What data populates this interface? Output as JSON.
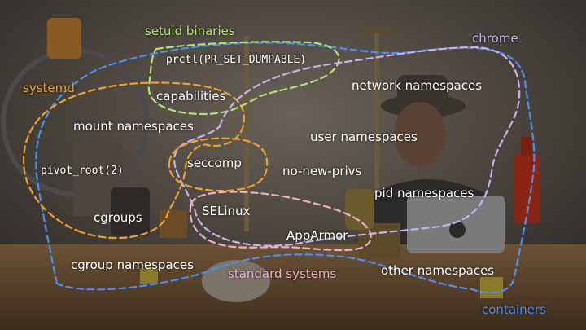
{
  "groups": {
    "setuid": {
      "label": "setuid binaries",
      "color": "#b8e07a"
    },
    "systemd": {
      "label": "systemd",
      "color": "#f0a030"
    },
    "chrome": {
      "label": "chrome",
      "color": "#c7b2ee"
    },
    "standard": {
      "label": "standard systems",
      "color": "#eab0c8"
    },
    "containers": {
      "label": "containers",
      "color": "#4d8ef0"
    }
  },
  "features": {
    "prctl": "prctl(PR_SET_DUMPABLE)",
    "capabilities": "capabilities",
    "mount_ns": "mount namespaces",
    "network_ns": "network namespaces",
    "user_ns": "user namespaces",
    "pivot_root": "pivot_root(2)",
    "seccomp": "seccomp",
    "no_new_privs": "no-new-privs",
    "pid_ns": "pid namespaces",
    "cgroups": "cgroups",
    "selinux": "SELinux",
    "apparmor": "AppArmor",
    "cgroup_ns": "cgroup namespaces",
    "other_ns": "other namespaces"
  },
  "text_color": "#ffffff"
}
